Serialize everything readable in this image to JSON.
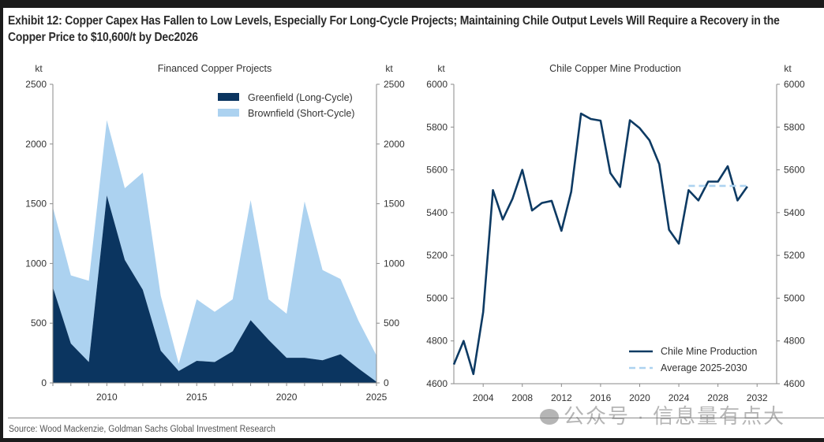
{
  "title": "Exhibit 12: Copper Capex Has Fallen to Low Levels, Especially For Long-Cycle Projects; Maintaining Chile Output Levels Will Require a Recovery in the Copper Price to $10,600/t by Dec2026",
  "source": "Source: Wood Mackenzie, Goldman Sachs Global Investment Research",
  "watermark": "公众号 · 信息量有点大",
  "colors": {
    "greenfield": "#0b3560",
    "brownfield": "#acd2f0",
    "line": "#0d3a63",
    "average": "#acd2f0",
    "axis": "#8a8a8a",
    "text": "#333333"
  },
  "chart_data": [
    {
      "type": "area",
      "stacked": true,
      "title": "Financed Copper Projects",
      "ylabel": "kt",
      "ylabel_right": "kt",
      "ylim": [
        0,
        2500
      ],
      "yticks": [
        0,
        500,
        1000,
        1500,
        2000,
        2500
      ],
      "xlim": [
        2007,
        2025
      ],
      "xticks": [
        2010,
        2015,
        2020,
        2025
      ],
      "legend": "top-right",
      "x": [
        2007,
        2008,
        2009,
        2010,
        2011,
        2012,
        2013,
        2014,
        2015,
        2016,
        2017,
        2018,
        2019,
        2020,
        2021,
        2022,
        2023,
        2024,
        2025
      ],
      "series": [
        {
          "name": "Greenfield (Long-Cycle)",
          "values": [
            800,
            330,
            175,
            1570,
            1030,
            780,
            270,
            100,
            185,
            175,
            265,
            525,
            360,
            210,
            210,
            190,
            240,
            120,
            10
          ]
        },
        {
          "name": "Brownfield (Short-Cycle)",
          "values": [
            670,
            570,
            680,
            630,
            600,
            980,
            460,
            60,
            515,
            420,
            435,
            1005,
            340,
            370,
            1310,
            755,
            630,
            400,
            220
          ]
        }
      ]
    },
    {
      "type": "line",
      "title": "Chile Copper Mine Production",
      "ylabel": "kt",
      "ylabel_right": "kt",
      "ylim": [
        4600,
        6000
      ],
      "yticks": [
        4600,
        4800,
        5000,
        5200,
        5400,
        5600,
        5800,
        6000
      ],
      "xlim": [
        2001,
        2034
      ],
      "xticks": [
        2004,
        2008,
        2012,
        2016,
        2020,
        2024,
        2028,
        2032
      ],
      "legend": "bottom-right",
      "series": [
        {
          "name": "Chile Mine Production",
          "style": "solid",
          "x": [
            2001,
            2002,
            2003,
            2004,
            2005,
            2006,
            2007,
            2008,
            2009,
            2010,
            2011,
            2012,
            2013,
            2014,
            2015,
            2016,
            2017,
            2018,
            2019,
            2020,
            2021,
            2022,
            2023,
            2024,
            2025,
            2026,
            2027,
            2028,
            2029,
            2030,
            2031
          ],
          "values": [
            4690,
            4800,
            4645,
            4935,
            5505,
            5368,
            5465,
            5600,
            5410,
            5445,
            5455,
            5315,
            5498,
            5863,
            5838,
            5830,
            5585,
            5520,
            5832,
            5795,
            5738,
            5627,
            5320,
            5255,
            5505,
            5457,
            5545,
            5545,
            5617,
            5457,
            5522
          ]
        },
        {
          "name": "Average 2025-2030",
          "style": "dashed",
          "x": [
            2025,
            2031
          ],
          "values": [
            5525,
            5525
          ]
        }
      ]
    }
  ]
}
